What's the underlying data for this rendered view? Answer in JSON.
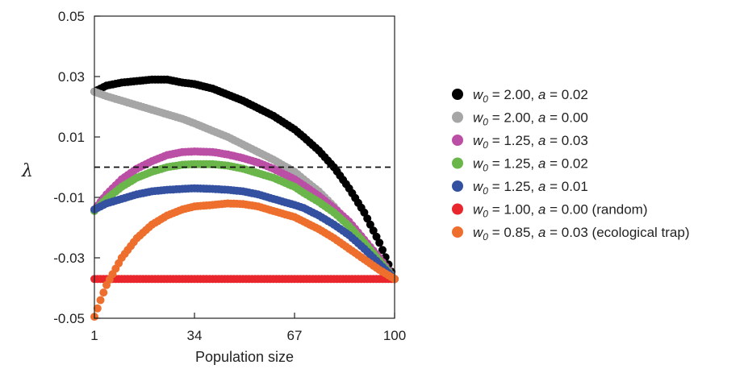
{
  "chart_data": {
    "type": "scatter",
    "title": "",
    "xlabel": "Population size",
    "ylabel": "λ",
    "xlim": [
      1,
      100
    ],
    "ylim": [
      -0.05,
      0.05
    ],
    "xticks": [
      "1",
      "34",
      "67",
      "100"
    ],
    "xtick_values": [
      1,
      34,
      67,
      100
    ],
    "yticks": [
      "0.05",
      "0.03",
      "0.01",
      "-0.01",
      "-0.03",
      "-0.05"
    ],
    "ytick_values": [
      0.05,
      0.03,
      0.01,
      -0.01,
      -0.03,
      -0.05
    ],
    "reference_line": {
      "y": 0,
      "style": "dashed"
    },
    "grid": false,
    "legend_position": "right",
    "series": [
      {
        "name": "w0 = 2.00, a = 0.02",
        "w0": "2.00",
        "a": "0.02",
        "note": "",
        "color": "#000000",
        "x": [
          1,
          5,
          10,
          15,
          20,
          25,
          30,
          34,
          40,
          45,
          50,
          55,
          60,
          67,
          70,
          75,
          80,
          85,
          90,
          95,
          100
        ],
        "y": [
          0.025,
          0.027,
          0.028,
          0.0285,
          0.029,
          0.029,
          0.028,
          0.0275,
          0.026,
          0.024,
          0.022,
          0.0195,
          0.017,
          0.0125,
          0.01,
          0.0055,
          0.0,
          -0.007,
          -0.015,
          -0.025,
          -0.037
        ]
      },
      {
        "name": "w0 = 2.00, a = 0.00",
        "w0": "2.00",
        "a": "0.00",
        "note": "",
        "color": "#a6a6a6",
        "x": [
          1,
          5,
          10,
          15,
          20,
          25,
          30,
          34,
          40,
          45,
          50,
          55,
          60,
          67,
          70,
          75,
          80,
          85,
          90,
          95,
          100
        ],
        "y": [
          0.025,
          0.0235,
          0.022,
          0.0205,
          0.019,
          0.0175,
          0.016,
          0.0145,
          0.012,
          0.01,
          0.0075,
          0.005,
          0.0025,
          -0.0015,
          -0.004,
          -0.008,
          -0.013,
          -0.019,
          -0.025,
          -0.031,
          -0.037
        ]
      },
      {
        "name": "w0 = 1.25, a = 0.03",
        "w0": "1.25",
        "a": "0.03",
        "note": "",
        "color": "#bb4fa5",
        "x": [
          1,
          5,
          10,
          15,
          20,
          25,
          30,
          34,
          40,
          45,
          50,
          55,
          60,
          67,
          70,
          75,
          80,
          85,
          90,
          95,
          100
        ],
        "y": [
          -0.014,
          -0.009,
          -0.004,
          -0.0005,
          0.002,
          0.004,
          0.005,
          0.0052,
          0.005,
          0.0042,
          0.003,
          0.0015,
          -0.0005,
          -0.004,
          -0.006,
          -0.0095,
          -0.0135,
          -0.018,
          -0.024,
          -0.03,
          -0.037
        ]
      },
      {
        "name": "w0 = 1.25, a = 0.02",
        "w0": "1.25",
        "a": "0.02",
        "note": "",
        "color": "#6ab64b",
        "x": [
          1,
          5,
          10,
          15,
          20,
          25,
          30,
          34,
          40,
          45,
          50,
          55,
          60,
          67,
          70,
          75,
          80,
          85,
          90,
          95,
          100
        ],
        "y": [
          -0.0145,
          -0.0105,
          -0.0065,
          -0.0035,
          -0.0015,
          0.0,
          0.0008,
          0.001,
          0.001,
          0.0005,
          -0.0005,
          -0.002,
          -0.0035,
          -0.0065,
          -0.0085,
          -0.0115,
          -0.015,
          -0.0195,
          -0.025,
          -0.031,
          -0.037
        ]
      },
      {
        "name": "w0 = 1.25, a = 0.01",
        "w0": "1.25",
        "a": "0.01",
        "note": "",
        "color": "#3450a1",
        "x": [
          1,
          5,
          10,
          15,
          20,
          25,
          30,
          34,
          40,
          45,
          50,
          55,
          60,
          67,
          70,
          75,
          80,
          85,
          90,
          95,
          100
        ],
        "y": [
          -0.014,
          -0.012,
          -0.0105,
          -0.009,
          -0.008,
          -0.0075,
          -0.0072,
          -0.007,
          -0.0072,
          -0.0075,
          -0.008,
          -0.009,
          -0.0105,
          -0.0125,
          -0.0135,
          -0.016,
          -0.019,
          -0.0225,
          -0.027,
          -0.032,
          -0.037
        ]
      },
      {
        "name": "w0 = 1.00, a = 0.00",
        "w0": "1.00",
        "a": "0.00",
        "note": "(random)",
        "color": "#e8262c",
        "x": [
          1,
          5,
          10,
          15,
          20,
          25,
          30,
          34,
          40,
          45,
          50,
          55,
          60,
          67,
          70,
          75,
          80,
          85,
          90,
          95,
          100
        ],
        "y": [
          -0.037,
          -0.037,
          -0.037,
          -0.037,
          -0.037,
          -0.037,
          -0.037,
          -0.037,
          -0.037,
          -0.037,
          -0.037,
          -0.037,
          -0.037,
          -0.037,
          -0.037,
          -0.037,
          -0.037,
          -0.037,
          -0.037,
          -0.037,
          -0.037
        ]
      },
      {
        "name": "w0 = 0.85, a = 0.03",
        "w0": "0.85",
        "a": "0.03",
        "note": "(ecological trap)",
        "color": "#ee6f2d",
        "x": [
          1,
          3,
          5,
          10,
          15,
          20,
          25,
          30,
          34,
          40,
          45,
          50,
          55,
          60,
          67,
          70,
          75,
          80,
          85,
          90,
          95,
          100
        ],
        "y": [
          -0.0495,
          -0.044,
          -0.039,
          -0.03,
          -0.0235,
          -0.019,
          -0.016,
          -0.014,
          -0.013,
          -0.0125,
          -0.012,
          -0.0122,
          -0.013,
          -0.0145,
          -0.0165,
          -0.018,
          -0.0205,
          -0.0235,
          -0.027,
          -0.0305,
          -0.034,
          -0.037
        ]
      }
    ]
  }
}
